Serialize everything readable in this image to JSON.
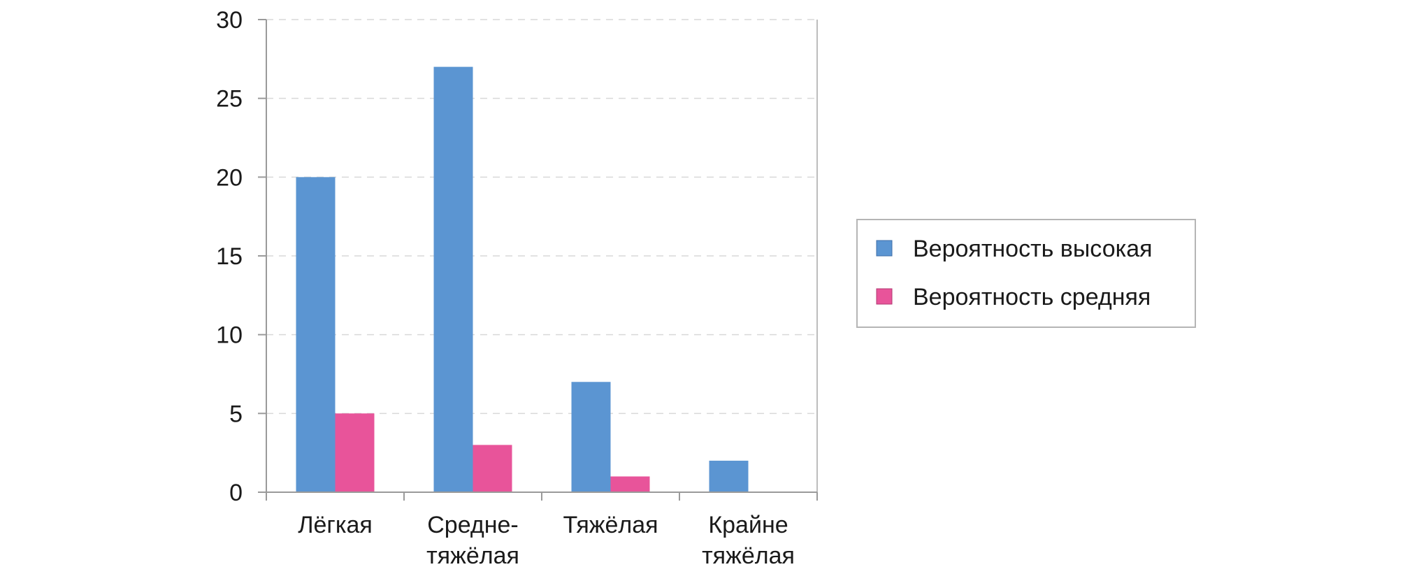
{
  "chart_data": {
    "type": "bar",
    "categories": [
      [
        "Лёгкая"
      ],
      [
        "Средне-",
        "тяжёлая"
      ],
      [
        "Тяжёлая"
      ],
      [
        "Крайне",
        "тяжёлая"
      ]
    ],
    "series": [
      {
        "name": "Вероятность высокая",
        "color": "#5b95d2",
        "values": [
          20,
          27,
          7,
          2
        ]
      },
      {
        "name": "Вероятность средняя",
        "color": "#e8549a",
        "values": [
          5,
          3,
          1,
          0
        ]
      }
    ],
    "yticks": [
      "0",
      "5",
      "10",
      "15",
      "20",
      "25",
      "30"
    ],
    "ylim": [
      0,
      30
    ],
    "grid": true,
    "legend_position": "right"
  }
}
